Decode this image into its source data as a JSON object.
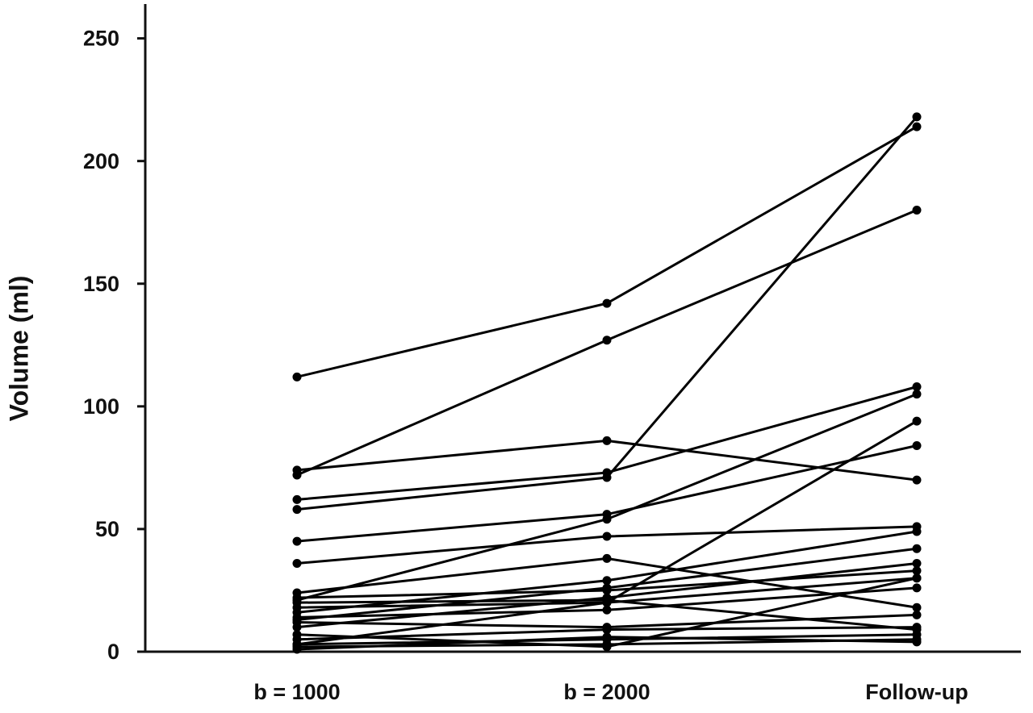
{
  "chart_data": {
    "type": "line",
    "y_label": "Volume (ml)",
    "categories": [
      "b = 1000",
      "b = 2000",
      "Follow-up"
    ],
    "ylim": [
      0,
      264
    ],
    "yticks": [
      0,
      50,
      100,
      150,
      200,
      250
    ],
    "color": "#000000",
    "series": [
      {
        "values": [
          112,
          142,
          214
        ]
      },
      {
        "values": [
          72,
          127,
          180
        ]
      },
      {
        "values": [
          74,
          86,
          70
        ]
      },
      {
        "values": [
          62,
          73,
          108
        ]
      },
      {
        "values": [
          58,
          71,
          218
        ]
      },
      {
        "values": [
          45,
          56,
          84
        ]
      },
      {
        "values": [
          36,
          47,
          51
        ]
      },
      {
        "values": [
          21,
          54,
          105
        ]
      },
      {
        "values": [
          3,
          20,
          94
        ]
      },
      {
        "values": [
          24,
          38,
          18
        ]
      },
      {
        "values": [
          16,
          29,
          49
        ]
      },
      {
        "values": [
          13,
          26,
          42
        ]
      },
      {
        "values": [
          10,
          22,
          36
        ]
      },
      {
        "values": [
          22,
          25,
          33
        ]
      },
      {
        "values": [
          18,
          20,
          30
        ]
      },
      {
        "values": [
          14,
          17,
          26
        ]
      },
      {
        "values": [
          5,
          9,
          10
        ]
      },
      {
        "values": [
          3,
          5,
          7
        ]
      },
      {
        "values": [
          2,
          3,
          5
        ]
      },
      {
        "values": [
          7,
          2,
          30
        ]
      },
      {
        "values": [
          12,
          10,
          15
        ]
      },
      {
        "values": [
          20,
          21,
          9
        ]
      },
      {
        "values": [
          1,
          6,
          4
        ]
      }
    ]
  }
}
